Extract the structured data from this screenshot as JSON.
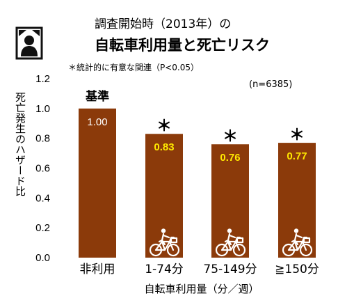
{
  "header": {
    "title_line1": "調査開始時（2013年）の",
    "title_line2": "自転車利用量と死亡リスク",
    "icon": "memorial-portrait-icon",
    "significance_note": "＊統計的に有意な関連（P<0.05）",
    "sample_size": "(n=6385)"
  },
  "chart_data": {
    "type": "bar",
    "categories": [
      "非利用",
      "1-74分",
      "75-149分",
      "≧150分"
    ],
    "values": [
      1.0,
      0.83,
      0.76,
      0.77
    ],
    "value_labels": [
      "1.00",
      "0.83",
      "0.76",
      "0.77"
    ],
    "significant": [
      false,
      true,
      true,
      true
    ],
    "significance_marker": "＊",
    "reference_label": "基準",
    "xlabel": "自転車利用量（分／週）",
    "ylabel": "死亡発生のハザード比",
    "ylim": [
      0,
      1.2
    ],
    "yticks": [
      "0.0",
      "0.2",
      "0.4",
      "0.6",
      "0.8",
      "1.0",
      "1.2"
    ],
    "grid": false,
    "legend": "none",
    "bar_icon": "bicycle-icon",
    "colors": {
      "bar": "#8b3a0a",
      "reference_value_text": "#ffffff",
      "value_text": "#ffe900"
    }
  }
}
